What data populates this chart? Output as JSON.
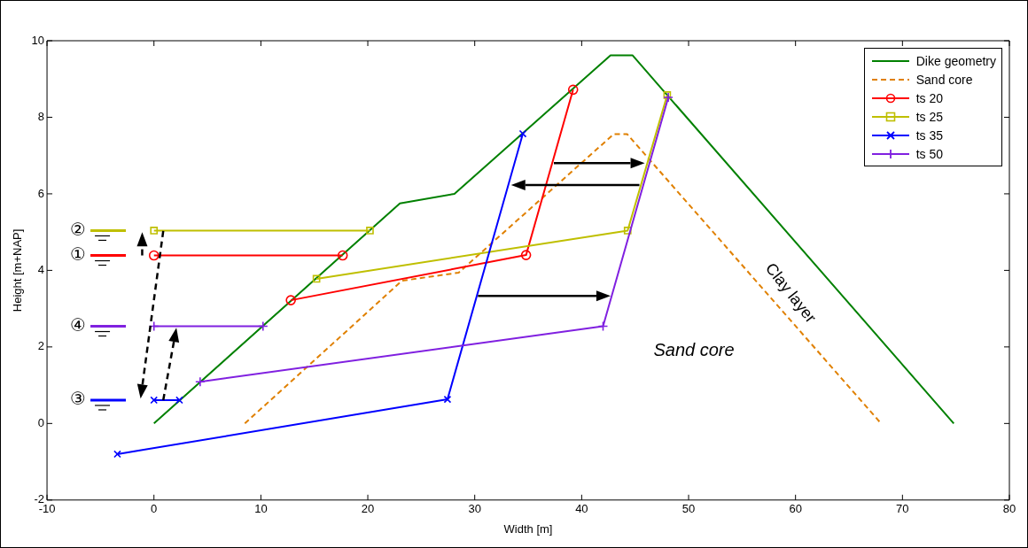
{
  "chart_data": {
    "type": "line",
    "xlabel": "Width [m]",
    "ylabel": "Height [m+NAP]",
    "xlim": [
      -10,
      80
    ],
    "xticks": [
      -10,
      0,
      10,
      20,
      30,
      40,
      50,
      60,
      70,
      80
    ],
    "ylim": [
      -2,
      10
    ],
    "yticks": [
      -2,
      0,
      2,
      4,
      6,
      8,
      10
    ],
    "grid": false,
    "legend": "top right",
    "series": [
      {
        "name": "Dike geometry",
        "color": "#008000",
        "x": [
          0,
          23,
          28.1,
          42.7,
          44.75,
          74.8
        ],
        "values": [
          0,
          5.75,
          6.0,
          9.62,
          9.62,
          0
        ],
        "marker": "none"
      },
      {
        "name": "Sand core",
        "color": "#e08000",
        "x": [
          8.5,
          23.2,
          28.5,
          43,
          44.25,
          68
        ],
        "values": [
          0,
          3.73,
          3.94,
          7.56,
          7.56,
          0
        ],
        "marker": "none",
        "line_style": "dashed"
      },
      {
        "name": "ts 20",
        "color": "#ff0000",
        "x": [
          0,
          17.65,
          null,
          12.8,
          34.8,
          39.2
        ],
        "values": [
          4.39,
          4.39,
          null,
          3.22,
          4.4,
          8.72
        ],
        "marker": "circle"
      },
      {
        "name": "ts 25",
        "color": "#bfbf00",
        "x": [
          0,
          20.2,
          null,
          15.2,
          44.3,
          48
        ],
        "values": [
          5.04,
          5.04,
          null,
          3.78,
          5.04,
          8.58
        ],
        "marker": "square"
      },
      {
        "name": "ts 35",
        "color": "#0000ff",
        "x": [
          0,
          2.38,
          null,
          -3.42,
          27.45,
          34.5
        ],
        "values": [
          0.61,
          0.61,
          null,
          -0.8,
          0.63,
          7.57
        ],
        "marker": "cross"
      },
      {
        "name": "ts 50",
        "color": "#8020e0",
        "x": [
          0,
          10.2,
          null,
          4.32,
          42,
          48.1
        ],
        "values": [
          2.54,
          2.54,
          null,
          1.09,
          2.54,
          8.52
        ],
        "marker": "plus"
      }
    ],
    "annotations": [
      "①",
      "②",
      "③",
      "④",
      "Sand core",
      "Clay layer"
    ]
  }
}
